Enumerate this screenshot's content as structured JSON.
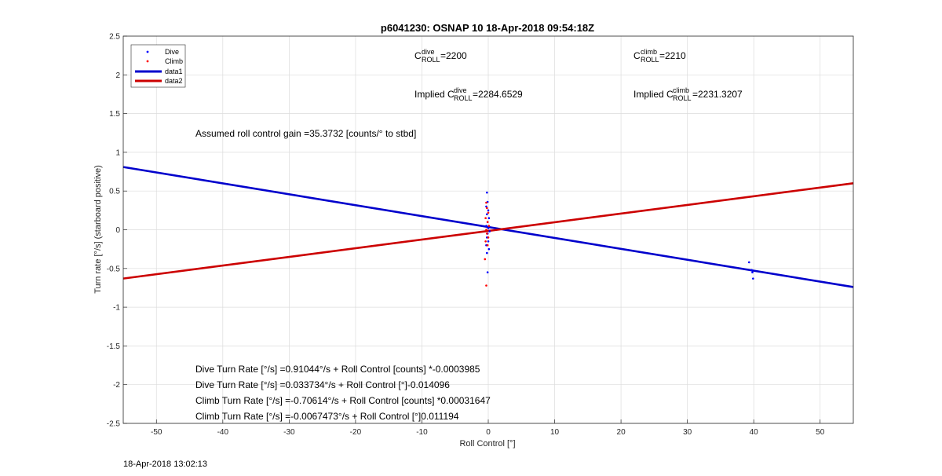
{
  "chart_data": {
    "type": "scatter",
    "title": "p6041230: OSNAP 10 18-Apr-2018 09:54:18Z",
    "xlabel": "Roll Control [°]",
    "ylabel": "Turn rate [°/s] (starboard positive)",
    "xlim": [
      -55,
      55
    ],
    "ylim": [
      -2.5,
      2.5
    ],
    "xticks": [
      -50,
      -40,
      -30,
      -20,
      -10,
      0,
      10,
      20,
      30,
      40,
      50
    ],
    "yticks": [
      -2.5,
      -2,
      -1.5,
      -1,
      -0.5,
      0,
      0.5,
      1,
      1.5,
      2,
      2.5
    ],
    "xtick_labels": [
      "-50",
      "-40",
      "-30",
      "-20",
      "-10",
      "0",
      "10",
      "20",
      "30",
      "40",
      "50"
    ],
    "ytick_labels": [
      "-2.5",
      "-2",
      "-1.5",
      "-1",
      "-0.5",
      "0",
      "0.5",
      "1",
      "1.5",
      "2",
      "2.5"
    ],
    "grid": true,
    "legend_position": "top-left",
    "series": [
      {
        "name": "Dive",
        "kind": "points",
        "color": "#0000ff",
        "points": [
          [
            -0.2,
            0.48
          ],
          [
            -0.1,
            0.36
          ],
          [
            -0.3,
            0.3
          ],
          [
            0.0,
            0.25
          ],
          [
            -0.2,
            0.2
          ],
          [
            0.1,
            0.15
          ],
          [
            -0.1,
            0.1
          ],
          [
            -0.3,
            0.05
          ],
          [
            0.0,
            0.02
          ],
          [
            0.2,
            -0.02
          ],
          [
            -0.1,
            -0.05
          ],
          [
            -0.2,
            -0.1
          ],
          [
            0.0,
            -0.15
          ],
          [
            -0.3,
            -0.2
          ],
          [
            0.1,
            -0.25
          ],
          [
            -0.2,
            -0.3
          ],
          [
            -0.1,
            -0.55
          ],
          [
            39.3,
            -0.42
          ],
          [
            39.7,
            -0.52
          ],
          [
            39.8,
            -0.55
          ],
          [
            39.9,
            -0.63
          ]
        ]
      },
      {
        "name": "Climb",
        "kind": "points",
        "color": "#ff0000",
        "points": [
          [
            -0.3,
            0.35
          ],
          [
            -0.2,
            0.28
          ],
          [
            0.0,
            0.22
          ],
          [
            -0.4,
            0.15
          ],
          [
            -0.1,
            0.1
          ],
          [
            0.1,
            0.05
          ],
          [
            -0.3,
            0.0
          ],
          [
            -0.2,
            -0.05
          ],
          [
            0.0,
            -0.1
          ],
          [
            -0.4,
            -0.15
          ],
          [
            -0.1,
            -0.2
          ],
          [
            -0.5,
            -0.38
          ],
          [
            -0.3,
            -0.72
          ]
        ]
      },
      {
        "name": "data1",
        "kind": "line",
        "color": "#0000cc",
        "points": [
          [
            -55,
            0.81
          ],
          [
            55,
            -0.74
          ]
        ]
      },
      {
        "name": "data2",
        "kind": "line",
        "color": "#cc0000",
        "points": [
          [
            -55,
            -0.63
          ],
          [
            55,
            0.6
          ]
        ]
      }
    ],
    "annotations": [
      {
        "id": "cdive",
        "base": "C",
        "sup": "dive",
        "sub": "ROLL",
        "text": " =2200"
      },
      {
        "id": "cclimb",
        "base": "C",
        "sup": "climb",
        "sub": "ROLL",
        "text": " =2210"
      },
      {
        "id": "impdive",
        "base": "Implied C",
        "sup": "dive",
        "sub": "ROLL",
        "text": " =2284.6529"
      },
      {
        "id": "impclimb",
        "base": "Implied C",
        "sup": "climb",
        "sub": "ROLL",
        "text": " =2231.3207"
      }
    ],
    "notes": [
      "Assumed roll control gain =35.3732 [counts/° to stbd]",
      "Dive Turn Rate [°/s] =0.91044°/s + Roll Control [counts] *-0.0003985",
      "Dive Turn Rate [°/s] =0.033734°/s + Roll Control [°]-0.014096",
      "Climb Turn Rate [°/s] =-0.70614°/s + Roll Control [counts] *0.00031647",
      "Climb Turn Rate [°/s] =-0.0067473°/s + Roll Control [°]0.011194"
    ]
  },
  "footer": {
    "timestamp": "18-Apr-2018 13:02:13"
  }
}
